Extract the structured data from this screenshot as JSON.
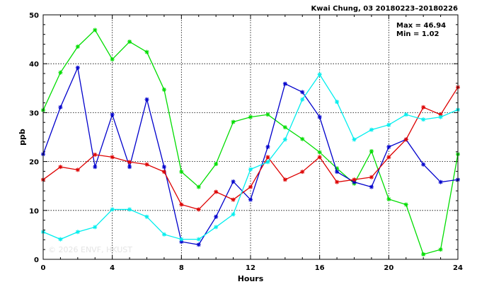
{
  "chart_data": {
    "type": "line",
    "title": "Kwai Chung, 03 20180223–20180226",
    "xlabel": "Hours",
    "ylabel": "ppb",
    "xlim": [
      0,
      24
    ],
    "ylim": [
      0,
      50
    ],
    "x_ticks": [
      0,
      4,
      8,
      12,
      16,
      20,
      24
    ],
    "y_ticks": [
      0,
      10,
      20,
      30,
      40,
      50
    ],
    "grid": true,
    "stats": {
      "max_label": "Max = 46.94",
      "min_label": "Min = 1.02"
    },
    "watermark": "© 2026 ENVF, HKUST",
    "x": [
      0,
      1,
      2,
      3,
      4,
      5,
      6,
      7,
      8,
      9,
      10,
      11,
      12,
      13,
      14,
      15,
      16,
      17,
      18,
      19,
      20,
      21,
      22,
      23,
      24
    ],
    "series": [
      {
        "color": "#00dd00",
        "values": [
          30.5,
          38.2,
          43.5,
          46.9,
          40.9,
          44.5,
          42.4,
          34.7,
          17.9,
          14.8,
          19.5,
          28.1,
          29.1,
          29.6,
          27.0,
          24.6,
          21.9,
          18.6,
          15.5,
          22.1,
          12.3,
          11.2,
          1.02,
          2.0,
          21.5
        ]
      },
      {
        "color": "#0000cc",
        "values": [
          21.5,
          31.1,
          39.2,
          18.9,
          29.6,
          18.9,
          32.7,
          18.9,
          3.6,
          3.0,
          8.7,
          15.9,
          12.2,
          23.0,
          35.9,
          34.2,
          29.1,
          17.9,
          15.8,
          14.8,
          23.0,
          24.5,
          19.4,
          15.8,
          16.3
        ]
      },
      {
        "color": "#dd0000",
        "values": [
          16.3,
          18.9,
          18.3,
          21.4,
          20.9,
          19.9,
          19.4,
          17.9,
          11.2,
          10.2,
          13.8,
          12.2,
          14.8,
          20.9,
          16.3,
          17.9,
          20.9,
          15.8,
          16.3,
          16.8,
          20.9,
          24.5,
          31.1,
          29.6,
          35.2
        ]
      },
      {
        "color": "#00eeee",
        "values": [
          5.6,
          4.1,
          5.6,
          6.6,
          10.2,
          10.2,
          8.7,
          5.1,
          4.1,
          4.1,
          6.6,
          9.2,
          18.4,
          19.9,
          24.5,
          32.7,
          37.8,
          32.2,
          24.5,
          26.5,
          27.5,
          29.6,
          28.6,
          29.1,
          30.6
        ]
      }
    ]
  }
}
